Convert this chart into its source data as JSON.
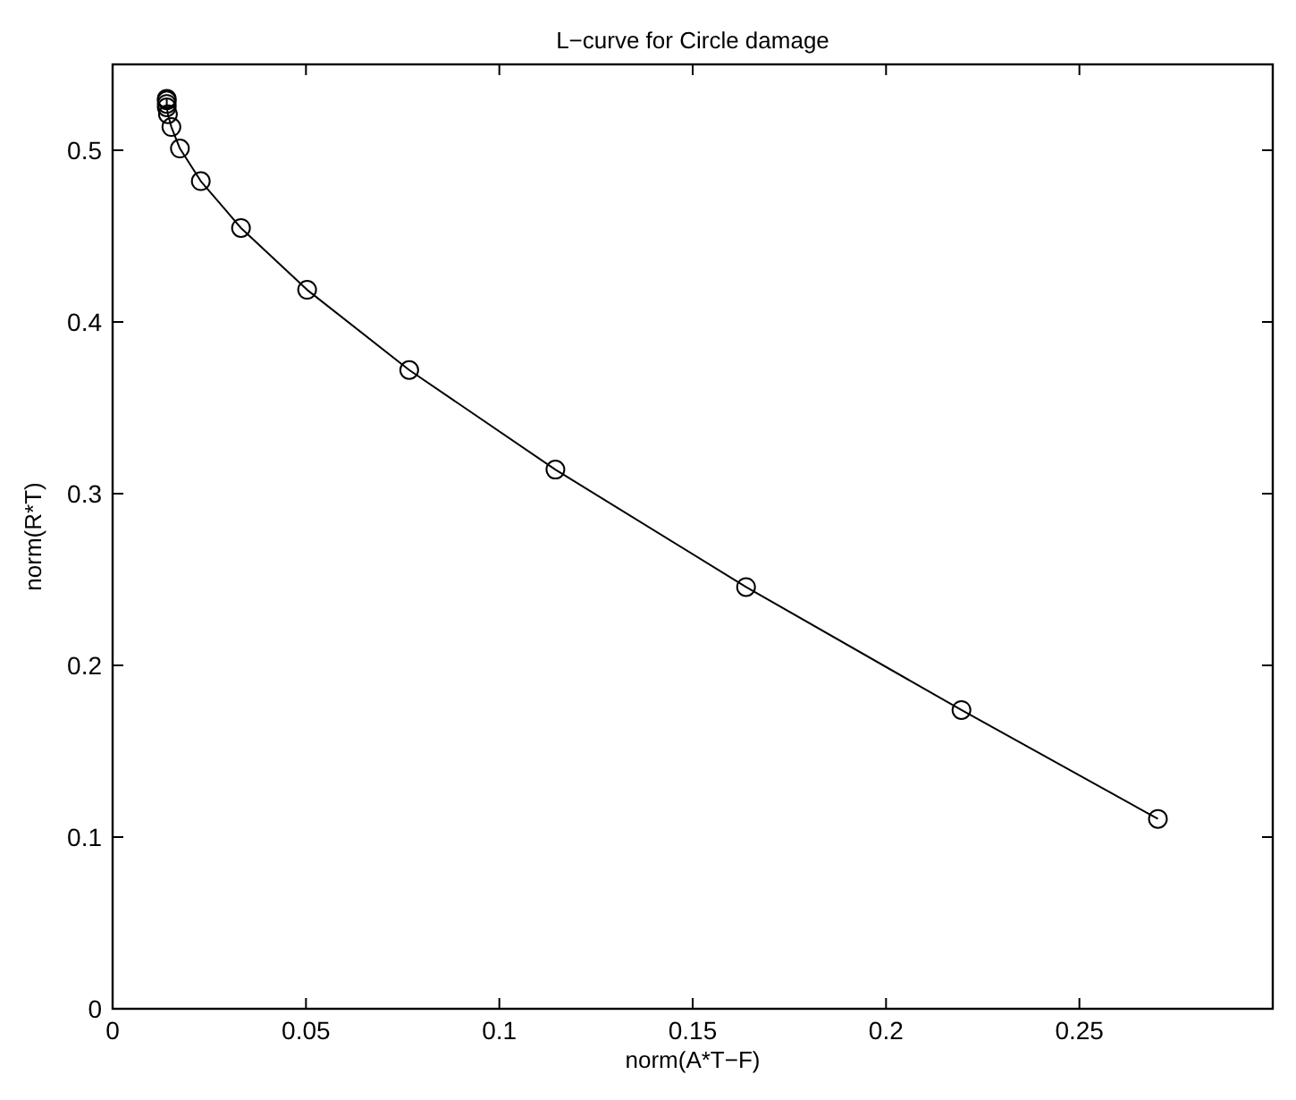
{
  "chart_data": {
    "type": "line",
    "title": "L−curve for Circle damage",
    "xlabel": "norm(A*T−F)",
    "ylabel": "norm(R*T)",
    "xlim": [
      0,
      0.3
    ],
    "ylim": [
      0,
      0.55
    ],
    "xticks": [
      0,
      0.05,
      0.1,
      0.15,
      0.2,
      0.25
    ],
    "yticks": [
      0,
      0.1,
      0.2,
      0.3,
      0.4,
      0.5
    ],
    "grid": false,
    "marker": "circle",
    "line_style": "solid",
    "series": [
      {
        "color": "#000000",
        "x": [
          0.014,
          0.014,
          0.014,
          0.014,
          0.0143,
          0.0152,
          0.0174,
          0.0228,
          0.0332,
          0.0503,
          0.0767,
          0.1145,
          0.1638,
          0.2195,
          0.2703
        ],
        "values": [
          0.53,
          0.529,
          0.527,
          0.525,
          0.521,
          0.5135,
          0.501,
          0.482,
          0.4547,
          0.4187,
          0.372,
          0.314,
          0.2456,
          0.174,
          0.1106
        ]
      }
    ]
  }
}
